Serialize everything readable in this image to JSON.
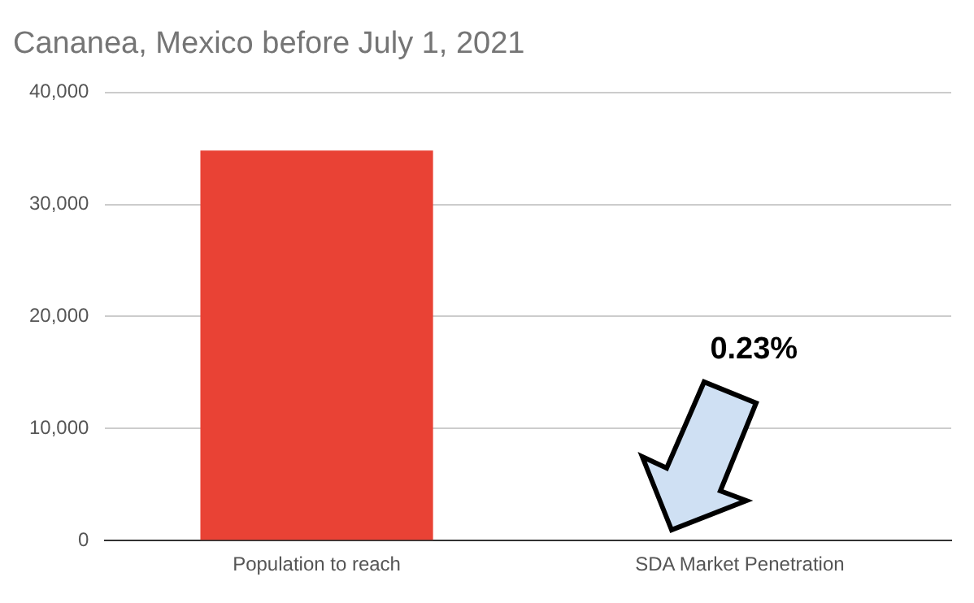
{
  "chart_data": {
    "type": "bar",
    "title": "Cananea, Mexico before July 1, 2021",
    "categories": [
      "Population to reach",
      "SDA Market Penetration"
    ],
    "values": [
      34800,
      0
    ],
    "colors": [
      "#e94235",
      "#e94235"
    ],
    "ylim": [
      0,
      40000
    ],
    "yticks": [
      {
        "value": 0,
        "label": "0"
      },
      {
        "value": 10000,
        "label": "10,000"
      },
      {
        "value": 20000,
        "label": "20,000"
      },
      {
        "value": 30000,
        "label": "30,000"
      },
      {
        "value": 40000,
        "label": "40,000"
      }
    ],
    "grid": "y",
    "legend": false,
    "annotations": [
      "0.23%"
    ]
  }
}
